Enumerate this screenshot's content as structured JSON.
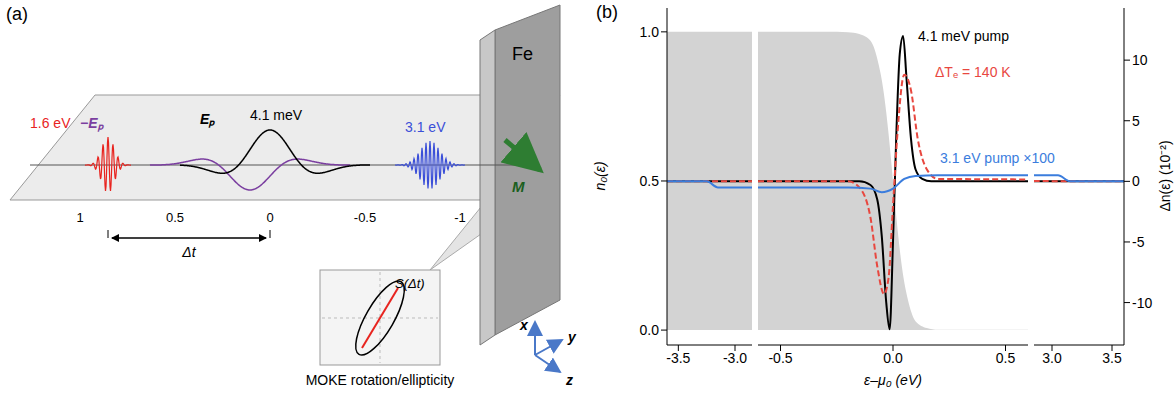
{
  "panel_labels": [
    "(a)",
    "(b)"
  ],
  "diagram": {
    "beam_ticks": [
      "1",
      "0.5",
      "0",
      "-0.5",
      "-1"
    ],
    "pulses": [
      {
        "label": "1.6 eV",
        "color": "#e8241f"
      },
      {
        "label": "−Eₚ",
        "color": "#7b3fa0"
      },
      {
        "label": "4.1 meV",
        "color": "#000000"
      },
      {
        "label": "Eₚ",
        "color": "#000000"
      },
      {
        "label": "3.1 eV",
        "color": "#3b4fd8"
      }
    ],
    "delay": "Δt",
    "sample": "Fe",
    "magnetization": "M",
    "signal": "S(Δt)",
    "detection": "MOKE rotation/ellipticity",
    "axes": [
      "x",
      "y",
      "z"
    ]
  },
  "chart_data": {
    "type": "line",
    "x_label": "ε–μ₀ (eV)",
    "y_label": "n₀(ε)",
    "y2_label": "Δn(ε) (10⁻²)",
    "xlim": [
      [
        -3.6,
        -2.85
      ],
      [
        -0.6,
        0.6
      ],
      [
        2.85,
        3.6
      ]
    ],
    "xticks": [
      [
        -3.5,
        {
          "value": -3,
          "label": "-3.0"
        }
      ],
      [
        -0.5,
        {
          "value": 0,
          "label": "0.0"
        },
        0.5
      ],
      [
        {
          "value": 3,
          "label": "3.0"
        },
        3.5
      ]
    ],
    "ylim": [
      -0.05,
      1.08
    ],
    "yticks": [
      {
        "value": 0,
        "label": "0.0"
      },
      0.5,
      {
        "value": 1,
        "label": "1.0"
      }
    ],
    "y2lim": [
      -13.5,
      14.3
    ],
    "y2ticks": [
      -10,
      -5,
      0,
      5,
      10
    ],
    "series": [
      {
        "type": "area",
        "color": "#d3d3d3",
        "x": [
          -3.6,
          -0.3,
          -0.2,
          -0.15,
          -0.1,
          -0.07,
          -0.04,
          -0.02,
          0,
          0.02,
          0.04,
          0.07,
          0.1,
          0.15,
          0.2,
          3.6
        ],
        "values": [
          1,
          1,
          0.999,
          0.993,
          0.97,
          0.91,
          0.79,
          0.66,
          0.5,
          0.34,
          0.21,
          0.09,
          0.03,
          0.007,
          0.001,
          0
        ]
      },
      {
        "type": "line",
        "name": "4.1 meV pump",
        "color": "#000000",
        "axis": "y2",
        "line_style": "solid",
        "x": [
          -3.6,
          -0.15,
          -0.1,
          -0.07,
          -0.05,
          -0.03,
          -0.015,
          0,
          0.015,
          0.03,
          0.045,
          0.06,
          0.08,
          0.1,
          0.13,
          0.17,
          3.6
        ],
        "values": [
          0,
          0,
          -0.3,
          -1.5,
          -4.5,
          -10,
          -12.2,
          -5,
          4,
          10.5,
          12,
          8.5,
          3.5,
          1,
          0.2,
          0,
          0
        ]
      },
      {
        "type": "line",
        "name": "ΔTₑ = 140 K",
        "color": "#e8473f",
        "axis": "y2",
        "line_style": "dashed",
        "x": [
          -3.6,
          -0.2,
          -0.15,
          -0.1,
          -0.07,
          -0.04,
          -0.02,
          0,
          0.02,
          0.05,
          0.08,
          0.11,
          0.15,
          0.2,
          3.6
        ],
        "values": [
          0,
          0,
          -0.5,
          -3,
          -7,
          -9.3,
          -8,
          -2,
          4,
          8.8,
          7.5,
          3.5,
          1,
          0.2,
          0
        ]
      },
      {
        "type": "line",
        "name": "3.1 eV pump ×100",
        "color": "#3b7ddd",
        "axis": "y2",
        "line_style": "solid",
        "x": [
          -3.6,
          -3.25,
          -3.15,
          -0.2,
          -0.1,
          -0.05,
          0,
          0.05,
          0.1,
          0.2,
          3.05,
          3.15,
          3.6
        ],
        "values": [
          0,
          0,
          -0.5,
          -0.5,
          -0.6,
          -0.9,
          -0.6,
          0.2,
          0.45,
          0.5,
          0.5,
          0,
          0
        ]
      }
    ]
  }
}
